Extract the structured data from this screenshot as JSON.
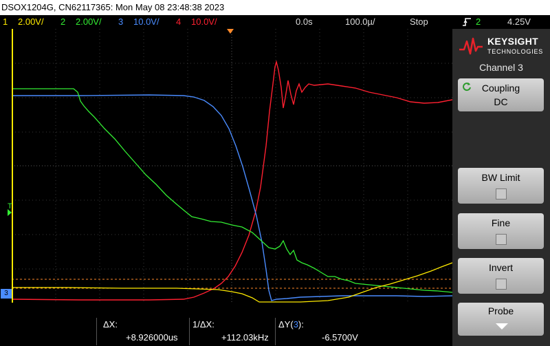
{
  "title_bar": "DSOX1204G, CN62117365: Mon May 08 23:48:38 2023",
  "channels": [
    {
      "num": "1",
      "scale": "2.00V/",
      "color": "#ffeb00"
    },
    {
      "num": "2",
      "scale": "2.00V/",
      "color": "#33ee33"
    },
    {
      "num": "3",
      "scale": "10.0V/",
      "color": "#4a8cff"
    },
    {
      "num": "4",
      "scale": "10.0V/",
      "color": "#ff2030"
    }
  ],
  "timebase": {
    "delay": "0.0s",
    "scale": "100.0µ/",
    "run_state": "Stop"
  },
  "trigger": {
    "channel": "2",
    "level": "4.25V",
    "icon": "rising-edge-icon"
  },
  "panel": {
    "brand": "KEYSIGHT",
    "brand_sub": "TECHNOLOGIES",
    "channel_title": "Channel 3",
    "coupling_label": "Coupling",
    "coupling_value": "DC",
    "bw_limit_label": "BW Limit",
    "fine_label": "Fine",
    "invert_label": "Invert",
    "probe_label": "Probe"
  },
  "markers": {
    "trigger_level": "T",
    "ch3_ground": "3"
  },
  "measurements": {
    "dx_label": "ΔX:",
    "dx_value": "+8.926000us",
    "inv_dx_label": "1/ΔX:",
    "inv_dx_value": "+112.03kHz",
    "dy_label_pre": "ΔY(",
    "dy_channel": "3",
    "dy_label_post": "):",
    "dy_value": "-6.5700V"
  }
}
